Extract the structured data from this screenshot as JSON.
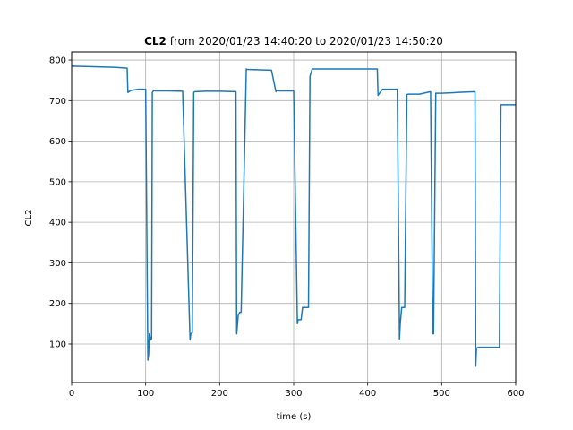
{
  "chart_data": {
    "type": "line",
    "title_bold": "CL2",
    "title_rest": " from 2020/01/23 14:40:20 to 2020/01/23 14:50:20",
    "xlabel": "time (s)",
    "ylabel": "CL2",
    "xlim": [
      0,
      600
    ],
    "ylim": [
      5,
      820
    ],
    "xticks": [
      0,
      100,
      200,
      300,
      400,
      500,
      600
    ],
    "yticks": [
      100,
      200,
      300,
      400,
      500,
      600,
      700,
      800
    ],
    "grid": true,
    "line_color": "#1f77b4",
    "series": [
      {
        "x": [
          0,
          20,
          40,
          60,
          75,
          76,
          80,
          90,
          100,
          103,
          104,
          105,
          107,
          108,
          109,
          111,
          113,
          130,
          150,
          160,
          161,
          163,
          165,
          166,
          168,
          180,
          200,
          222,
          223,
          225,
          227,
          229,
          236,
          237,
          250,
          270,
          276,
          277,
          280,
          300,
          305,
          306,
          310,
          312,
          320,
          322,
          325,
          350,
          380,
          413,
          414,
          420,
          440,
          443,
          444,
          446,
          450,
          453,
          455,
          470,
          485,
          488,
          489,
          492,
          494,
          500,
          520,
          545,
          546,
          547,
          550,
          560,
          578,
          580,
          590,
          600
        ],
        "y": [
          785,
          784,
          783,
          782,
          780,
          720,
          725,
          728,
          728,
          60,
          75,
          125,
          110,
          112,
          720,
          725,
          724,
          724,
          723,
          110,
          125,
          128,
          720,
          722,
          722,
          723,
          723,
          722,
          125,
          170,
          178,
          178,
          778,
          777,
          776,
          775,
          722,
          725,
          724,
          724,
          150,
          160,
          160,
          190,
          190,
          760,
          778,
          778,
          778,
          778,
          713,
          728,
          728,
          112,
          150,
          190,
          190,
          715,
          716,
          716,
          722,
          125,
          125,
          718,
          718,
          718,
          720,
          722,
          45,
          90,
          92,
          92,
          92,
          690,
          690,
          690
        ]
      }
    ]
  }
}
